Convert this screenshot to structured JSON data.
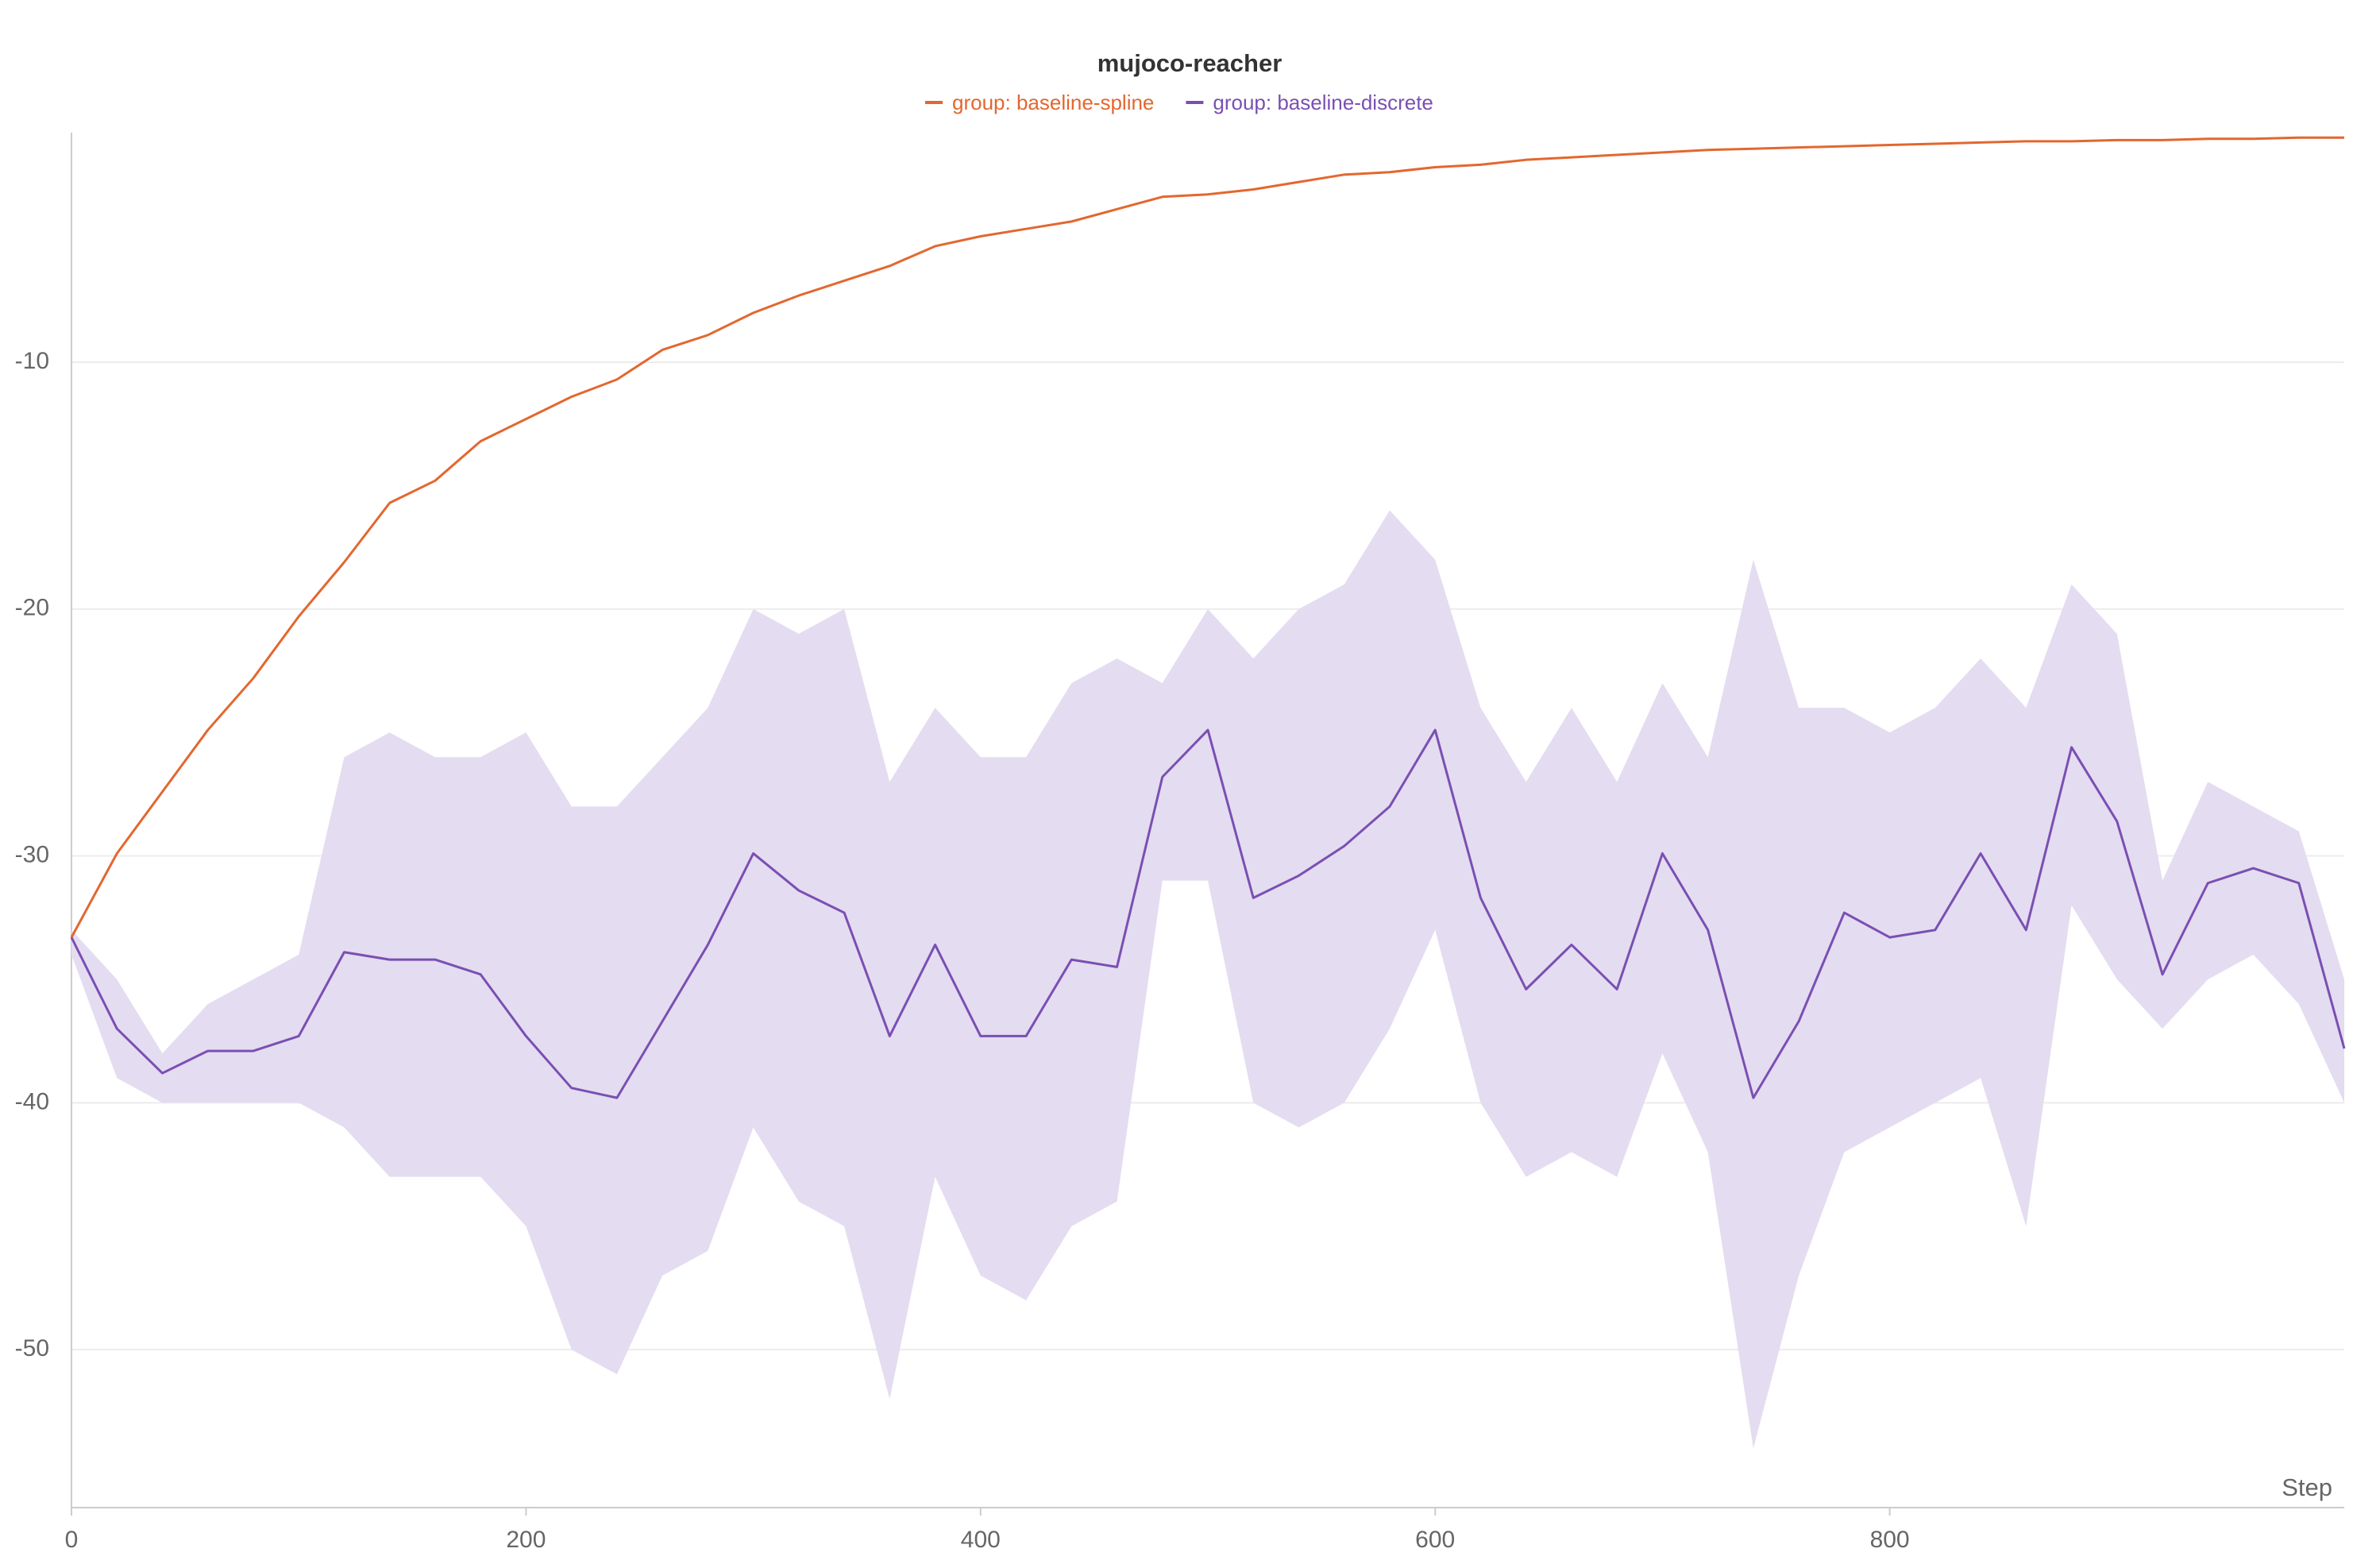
{
  "chart_data": {
    "type": "line",
    "title": "mujoco-reacher",
    "x_label": "Step",
    "x": [
      0,
      20,
      40,
      60,
      80,
      100,
      120,
      140,
      160,
      180,
      200,
      220,
      240,
      260,
      280,
      300,
      320,
      340,
      360,
      380,
      400,
      420,
      440,
      460,
      480,
      500,
      520,
      540,
      560,
      580,
      600,
      620,
      640,
      660,
      680,
      700,
      720,
      740,
      760,
      780,
      800,
      820,
      840,
      860,
      880,
      900,
      920,
      940,
      960,
      980,
      1000
    ],
    "series": [
      {
        "name": "group: baseline-spline",
        "color": "#e3672f",
        "values": [
          -33.3,
          -29.9,
          -27.4,
          -24.9,
          -22.8,
          -20.3,
          -18.1,
          -15.7,
          -14.8,
          -13.2,
          -12.3,
          -11.4,
          -10.7,
          -9.5,
          -8.9,
          -8.0,
          -7.3,
          -6.7,
          -6.1,
          -5.3,
          -4.9,
          -4.6,
          -4.3,
          -3.8,
          -3.3,
          -3.2,
          -3.0,
          -2.7,
          -2.4,
          -2.3,
          -2.1,
          -2.0,
          -1.8,
          -1.7,
          -1.6,
          -1.5,
          -1.4,
          -1.35,
          -1.3,
          -1.25,
          -1.2,
          -1.15,
          -1.1,
          -1.05,
          -1.05,
          -1.0,
          -1.0,
          -0.95,
          -0.95,
          -0.9,
          -0.9
        ]
      },
      {
        "name": "group: baseline-discrete",
        "color": "#7a4fb3",
        "band_color": "#e4dcf0",
        "values": [
          -33.3,
          -37.0,
          -38.8,
          -37.9,
          -37.9,
          -37.3,
          -33.9,
          -34.2,
          -34.2,
          -34.8,
          -37.3,
          -39.4,
          -39.8,
          -36.7,
          -33.6,
          -29.9,
          -31.4,
          -32.3,
          -37.3,
          -33.6,
          -37.3,
          -37.3,
          -34.2,
          -34.5,
          -26.8,
          -24.9,
          -31.7,
          -30.8,
          -29.6,
          -28.0,
          -24.9,
          -31.7,
          -35.4,
          -33.6,
          -35.4,
          -29.9,
          -33.0,
          -39.8,
          -36.7,
          -32.3,
          -33.3,
          -33.0,
          -29.9,
          -33.0,
          -25.6,
          -28.6,
          -34.8,
          -31.1,
          -30.5,
          -31.1,
          -37.8
        ],
        "upper": [
          -33,
          -35,
          -38,
          -36,
          -35,
          -34,
          -26,
          -25,
          -26,
          -26,
          -25,
          -28,
          -28,
          -26,
          -24,
          -20,
          -21,
          -20,
          -27,
          -24,
          -26,
          -26,
          -23,
          -22,
          -23,
          -20,
          -22,
          -20,
          -19,
          -16,
          -18,
          -24,
          -27,
          -24,
          -27,
          -23,
          -26,
          -18,
          -24,
          -24,
          -25,
          -24,
          -22,
          -24,
          -19,
          -21,
          -31,
          -27,
          -28,
          -29,
          -35
        ],
        "lower": [
          -34,
          -39,
          -40,
          -40,
          -40,
          -40,
          -41,
          -43,
          -43,
          -43,
          -45,
          -50,
          -51,
          -47,
          -46,
          -41,
          -44,
          -45,
          -52,
          -43,
          -47,
          -48,
          -45,
          -44,
          -31,
          -31,
          -40,
          -41,
          -40,
          -37,
          -33,
          -40,
          -43,
          -42,
          -43,
          -38,
          -42,
          -54,
          -47,
          -42,
          -41,
          -40,
          -39,
          -45,
          -32,
          -35,
          -37,
          -35,
          -34,
          -36,
          -40
        ]
      }
    ],
    "xlim": [
      0,
      1000
    ],
    "ylim": [
      -56.4,
      -0.7
    ],
    "xticks": [
      0,
      200,
      400,
      600,
      800
    ],
    "yticks": [
      -50,
      -40,
      -30,
      -20,
      -10
    ],
    "grid": true
  }
}
